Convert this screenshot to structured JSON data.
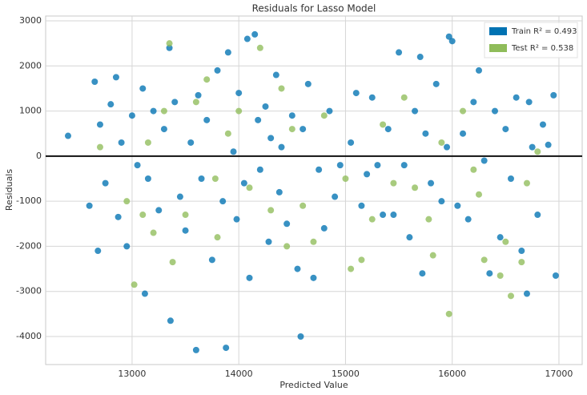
{
  "chart_data": {
    "type": "scatter",
    "title": "Residuals for Lasso Model",
    "x_label": "Predicted Value",
    "y_label": "Residuals",
    "xlim": [
      12190,
      17218
    ],
    "ylim": [
      -4622,
      3107
    ],
    "xticks": [
      13000,
      14000,
      15000,
      16000,
      17000
    ],
    "yticks": [
      -4000,
      -3000,
      -2000,
      -1000,
      0,
      1000,
      2000,
      3000
    ],
    "grid": true,
    "hline": 0,
    "legend": "upper right",
    "series": [
      {
        "name": "Train R² = 0.493",
        "color": "#0072b2",
        "x": [
          12400,
          12600,
          12650,
          12680,
          12700,
          12750,
          12800,
          12850,
          12870,
          12900,
          12950,
          13000,
          13050,
          13100,
          13120,
          13150,
          13200,
          13250,
          13300,
          13350,
          13360,
          13400,
          13450,
          13500,
          13550,
          13600,
          13620,
          13650,
          13700,
          13750,
          13800,
          13850,
          13880,
          13900,
          13950,
          13980,
          14000,
          14050,
          14080,
          14100,
          14150,
          14180,
          14200,
          14250,
          14280,
          14300,
          14350,
          14380,
          14400,
          14450,
          14500,
          14550,
          14580,
          14600,
          14650,
          14700,
          14750,
          14800,
          14850,
          14900,
          14950,
          15050,
          15100,
          15150,
          15200,
          15250,
          15300,
          15350,
          15400,
          15450,
          15500,
          15550,
          15600,
          15650,
          15700,
          15720,
          15750,
          15800,
          15850,
          15900,
          15950,
          15970,
          16000,
          16050,
          16100,
          16150,
          16200,
          16250,
          16300,
          16350,
          16400,
          16450,
          16500,
          16550,
          16600,
          16650,
          16700,
          16720,
          16750,
          16800,
          16850,
          16900,
          16950,
          16970
        ],
        "values": [
          450,
          -1100,
          1650,
          -2100,
          700,
          -600,
          1150,
          1750,
          -1350,
          300,
          -2000,
          900,
          -200,
          1500,
          -3050,
          -500,
          1000,
          -1200,
          600,
          2400,
          -3650,
          1200,
          -900,
          -1650,
          300,
          -4300,
          1350,
          -500,
          800,
          -2300,
          1900,
          -1000,
          -4250,
          2300,
          100,
          -1400,
          1400,
          -600,
          2600,
          -2700,
          2700,
          800,
          -300,
          1100,
          -1900,
          400,
          1800,
          -800,
          200,
          -1500,
          900,
          -2500,
          -4000,
          600,
          1600,
          -2700,
          -300,
          -1600,
          1000,
          -900,
          -200,
          300,
          1400,
          -1100,
          -400,
          1300,
          -200,
          -1300,
          600,
          -1300,
          2300,
          -200,
          -1800,
          1000,
          2200,
          -2600,
          500,
          -600,
          1600,
          -1000,
          200,
          2650,
          2550,
          -1100,
          500,
          -1400,
          1200,
          1900,
          -100,
          -2600,
          1000,
          -1800,
          600,
          -500,
          1300,
          -2100,
          -3050,
          1200,
          200,
          -1300,
          700,
          250,
          1350,
          -2650
        ]
      },
      {
        "name": "Test R² = 0.538",
        "color": "#8fbc5a",
        "x": [
          12700,
          12950,
          13020,
          13100,
          13150,
          13200,
          13300,
          13350,
          13380,
          13500,
          13600,
          13700,
          13780,
          13800,
          13900,
          14000,
          14100,
          14200,
          14300,
          14400,
          14450,
          14500,
          14600,
          14700,
          14800,
          15000,
          15050,
          15150,
          15250,
          15350,
          15450,
          15550,
          15650,
          15780,
          15820,
          15900,
          15970,
          16100,
          16200,
          16250,
          16300,
          16450,
          16500,
          16550,
          16650,
          16700,
          16800
        ],
        "values": [
          200,
          -1000,
          -2850,
          -1300,
          300,
          -1700,
          1000,
          2500,
          -2350,
          -1300,
          1200,
          1700,
          -500,
          -1800,
          500,
          1000,
          -700,
          2400,
          -1200,
          1500,
          -2000,
          600,
          -1100,
          -1900,
          900,
          -500,
          -2500,
          -2300,
          -1400,
          700,
          -600,
          1300,
          -700,
          -1400,
          -2200,
          300,
          -3500,
          1000,
          -300,
          -850,
          -2300,
          -2650,
          -1900,
          -3100,
          -2350,
          -600,
          100
        ]
      }
    ]
  }
}
